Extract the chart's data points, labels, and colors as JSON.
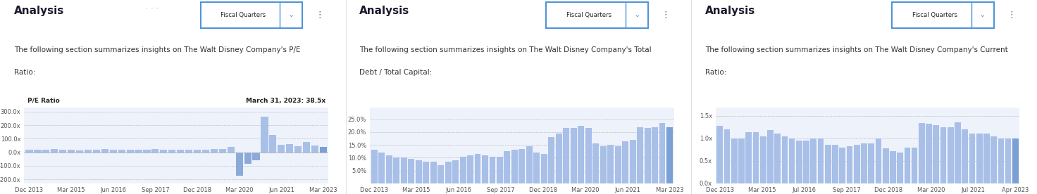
{
  "panels": [
    {
      "title": "Analysis",
      "subtitle_line1": "The following section summarizes insights on The Walt Disney Company's P/E",
      "subtitle_line2": "Ratio:",
      "chart_label": "P/E Ratio",
      "annotation": "March 31, 2023: 38.5x",
      "has_dots": true,
      "yticks": [
        300,
        200,
        100,
        0,
        -100,
        -200
      ],
      "ytick_labels": [
        "300.0x",
        "200.0x",
        "100.0x",
        "0.0x",
        "-100.0x",
        "-200.0x"
      ],
      "ylim": [
        -230,
        330
      ],
      "xtick_labels": [
        "Dec 2013",
        "Mar 2015",
        "Jun 2016",
        "Sep 2017",
        "Dec 2018",
        "Mar 2020",
        "Jun 2021",
        "Mar 2023"
      ],
      "bar_color": "#a8bfe8",
      "neg_bar_color": "#8baad8",
      "highlight_bar_color": "#7aa0d4",
      "bg_color": "#eef2fb",
      "values": [
        20,
        17,
        20,
        22,
        18,
        20,
        15,
        20,
        18,
        22,
        20,
        18,
        20,
        18,
        20,
        22,
        20,
        20,
        18,
        20,
        20,
        18,
        22,
        25,
        40,
        -175,
        -85,
        -60,
        265,
        130,
        55,
        60,
        45,
        75,
        50,
        38.5
      ]
    },
    {
      "title": "Analysis",
      "subtitle_line1": "The following section summarizes insights on The Walt Disney Company's Total",
      "subtitle_line2": "Debt / Total Capital:",
      "chart_label": "",
      "annotation": "",
      "has_dots": false,
      "yticks": [
        0.25,
        0.2,
        0.15,
        0.1,
        0.05
      ],
      "ytick_labels": [
        "25.0%",
        "20.0%",
        "15.0%",
        "10.0%",
        "5.0%"
      ],
      "ylim": [
        0,
        0.295
      ],
      "xtick_labels": [
        "Dec 2013",
        "Mar 2015",
        "Jun 2016",
        "Sep 2017",
        "Dec 2018",
        "Mar 2020",
        "Jun 2021",
        "Mar 2023"
      ],
      "bar_color": "#a8bfe8",
      "neg_bar_color": "#a8bfe8",
      "highlight_bar_color": "#7aa0d4",
      "bg_color": "#eef2fb",
      "values": [
        0.13,
        0.12,
        0.11,
        0.1,
        0.1,
        0.095,
        0.09,
        0.085,
        0.085,
        0.07,
        0.085,
        0.09,
        0.105,
        0.11,
        0.115,
        0.11,
        0.105,
        0.105,
        0.125,
        0.13,
        0.135,
        0.145,
        0.12,
        0.115,
        0.18,
        0.195,
        0.215,
        0.215,
        0.225,
        0.215,
        0.155,
        0.145,
        0.15,
        0.145,
        0.165,
        0.17,
        0.22,
        0.215,
        0.22,
        0.235,
        0.22
      ]
    },
    {
      "title": "Analysis",
      "subtitle_line1": "The following section summarizes insights on The Walt Disney Company's Current",
      "subtitle_line2": "Ratio:",
      "chart_label": "",
      "annotation": "",
      "has_dots": false,
      "yticks": [
        1.5,
        1.0,
        0.5,
        0.0
      ],
      "ytick_labels": [
        "1.5x",
        "1.0x",
        "0.5x",
        "0.0x"
      ],
      "ylim": [
        0,
        1.68
      ],
      "xtick_labels": [
        "Dec 2013",
        "Mar 2015",
        "Jul 2016",
        "Sep 2017",
        "Dec 2018",
        "Mar 2020",
        "Jul 2021",
        "Apr 2023"
      ],
      "bar_color": "#a8bfe8",
      "neg_bar_color": "#a8bfe8",
      "highlight_bar_color": "#7aa0d4",
      "bg_color": "#eef2fb",
      "values": [
        1.27,
        1.2,
        1.0,
        1.0,
        1.14,
        1.14,
        1.05,
        1.18,
        1.1,
        1.05,
        1.0,
        0.95,
        0.95,
        1.0,
        1.0,
        0.85,
        0.85,
        0.8,
        0.83,
        0.85,
        0.88,
        0.88,
        1.0,
        0.78,
        0.72,
        0.68,
        0.8,
        0.8,
        1.34,
        1.32,
        1.3,
        1.25,
        1.25,
        1.35,
        1.2,
        1.1,
        1.1,
        1.1,
        1.04,
        1.0,
        1.0,
        1.0
      ]
    }
  ],
  "btn_edge_color": "#4a90d9",
  "btn_text_color": "#333333",
  "bg_white": "#ffffff",
  "panel_divider_color": "#e0e0e0",
  "title_fontsize": 11,
  "subtitle_fontsize": 7.5,
  "tick_fontsize": 6.0,
  "chart_label_fontsize": 6.5
}
